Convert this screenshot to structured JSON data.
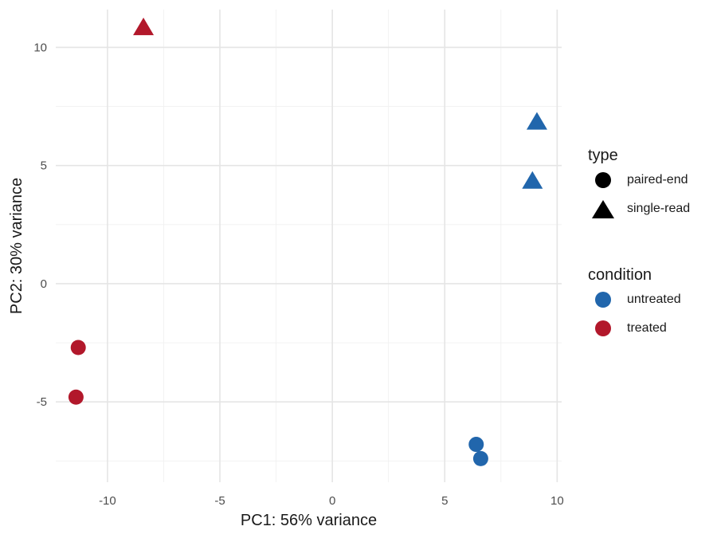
{
  "chart_data": {
    "type": "scatter",
    "xlabel": "PC1: 56% variance",
    "ylabel": "PC2: 30% variance",
    "xlim": [
      -12.3,
      10.2
    ],
    "ylim": [
      -8.4,
      11.6
    ],
    "x_ticks": [
      -10,
      -5,
      0,
      5,
      10
    ],
    "y_ticks": [
      -5,
      0,
      5,
      10
    ],
    "x_tick_labels": [
      "-10",
      "-5",
      "0",
      "5",
      "10"
    ],
    "y_tick_labels": [
      "-5",
      "0",
      "5",
      "10"
    ],
    "grid": true,
    "points": [
      {
        "x": -8.4,
        "y": 10.8,
        "condition": "treated",
        "type": "single-read"
      },
      {
        "x": 9.1,
        "y": 6.8,
        "condition": "untreated",
        "type": "single-read"
      },
      {
        "x": 8.9,
        "y": 4.3,
        "condition": "untreated",
        "type": "single-read"
      },
      {
        "x": -11.3,
        "y": -2.7,
        "condition": "treated",
        "type": "paired-end"
      },
      {
        "x": -11.4,
        "y": -4.8,
        "condition": "treated",
        "type": "paired-end"
      },
      {
        "x": 6.4,
        "y": -6.8,
        "condition": "untreated",
        "type": "paired-end"
      },
      {
        "x": 6.6,
        "y": -7.4,
        "condition": "untreated",
        "type": "paired-end"
      }
    ],
    "legends": {
      "type": {
        "title": "type",
        "items": [
          {
            "label": "paired-end",
            "shape": "circle"
          },
          {
            "label": "single-read",
            "shape": "triangle"
          }
        ]
      },
      "condition": {
        "title": "condition",
        "items": [
          {
            "label": "untreated",
            "color": "#2166ac"
          },
          {
            "label": "treated",
            "color": "#b2182b"
          }
        ]
      }
    },
    "legend_position": "right"
  }
}
